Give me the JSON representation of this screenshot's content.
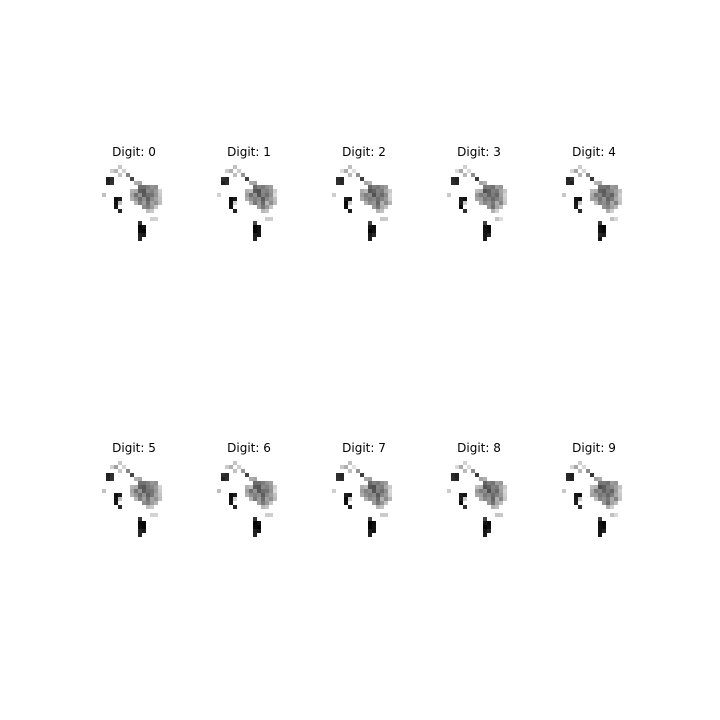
{
  "figure": {
    "background": "#ffffff",
    "title_prefix": "Digit:"
  },
  "panels": [
    {
      "title": "Digit: 0",
      "digit": 0
    },
    {
      "title": "Digit: 1",
      "digit": 1
    },
    {
      "title": "Digit: 2",
      "digit": 2
    },
    {
      "title": "Digit: 3",
      "digit": 3
    },
    {
      "title": "Digit: 4",
      "digit": 4
    },
    {
      "title": "Digit: 5",
      "digit": 5
    },
    {
      "title": "Digit: 6",
      "digit": 6
    },
    {
      "title": "Digit: 7",
      "digit": 7
    },
    {
      "title": "Digit: 8",
      "digit": 8
    },
    {
      "title": "Digit: 9",
      "digit": 9
    }
  ],
  "colormap": "gray_r"
}
